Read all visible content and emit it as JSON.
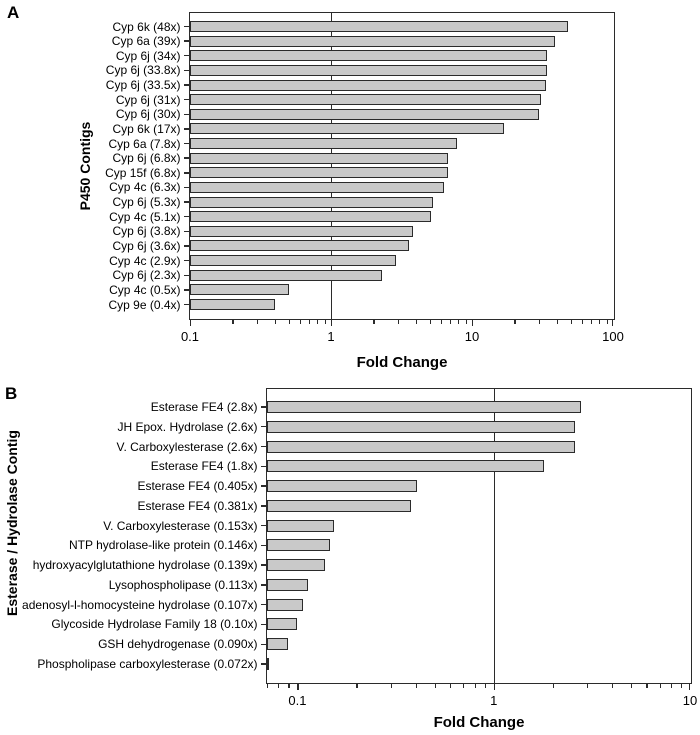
{
  "figure_note_colors": "colors below are the ones visible in the figure",
  "colors": {
    "background": "#ffffff",
    "bar_fill": "#c9c9c9",
    "bar_border": "#2b2b2b",
    "axis": "#2b2b2b",
    "text": "#000000"
  },
  "chart_data": [
    {
      "panel": "A",
      "type": "bar",
      "orientation": "horizontal",
      "xlabel": "Fold Change",
      "ylabel": "P450 Contigs",
      "x_scale": "log",
      "xlim": [
        0.1,
        100
      ],
      "x_tick_labels": [
        "0.1",
        "1",
        "10",
        "100"
      ],
      "reference_line_x": 1,
      "grid": false,
      "legend": false,
      "categories": [
        "Cyp 6k (48x)",
        "Cyp 6a (39x)",
        "Cyp 6j (34x)",
        "Cyp 6j (33.8x)",
        "Cyp 6j (33.5x)",
        "Cyp 6j (31x)",
        "Cyp 6j (30x)",
        "Cyp 6k (17x)",
        "Cyp 6a (7.8x)",
        "Cyp 6j (6.8x)",
        "Cyp 15f (6.8x)",
        "Cyp 4c (6.3x)",
        "Cyp 6j (5.3x)",
        "Cyp 4c (5.1x)",
        "Cyp 6j (3.8x)",
        "Cyp 6j (3.6x)",
        "Cyp 4c (2.9x)",
        "Cyp 6j (2.3x)",
        "Cyp 4c (0.5x)",
        "Cyp 9e (0.4x)"
      ],
      "values": [
        48,
        39,
        34,
        33.8,
        33.5,
        31,
        30,
        17,
        7.8,
        6.8,
        6.8,
        6.3,
        5.3,
        5.1,
        3.8,
        3.6,
        2.9,
        2.3,
        0.5,
        0.4
      ]
    },
    {
      "panel": "B",
      "type": "bar",
      "orientation": "horizontal",
      "xlabel": "Fold Change",
      "ylabel": "Esterase / Hydrolase Contig",
      "x_scale": "log",
      "xlim": [
        0.07,
        10
      ],
      "x_tick_labels": [
        "0.1",
        "1",
        "10"
      ],
      "reference_line_x": 1,
      "grid": false,
      "legend": false,
      "categories": [
        "Esterase FE4 (2.8x)",
        "JH Epox. Hydrolase (2.6x)",
        "V. Carboxylesterase (2.6x)",
        "Esterase FE4 (1.8x)",
        "Esterase FE4 (0.405x)",
        "Esterase FE4 (0.381x)",
        "V. Carboxylesterase (0.153x)",
        "NTP hydrolase-like protein (0.146x)",
        "hydroxyacylglutathione hydrolase (0.139x)",
        "Lysophospholipase (0.113x)",
        "adenosyl-l-homocysteine hydrolase (0.107x)",
        "Glycoside Hydrolase Family 18 (0.10x)",
        "GSH dehydrogenase (0.090x)",
        "Phospholipase carboxylesterase (0.072x)"
      ],
      "values": [
        2.8,
        2.6,
        2.6,
        1.8,
        0.405,
        0.381,
        0.153,
        0.146,
        0.139,
        0.113,
        0.107,
        0.1,
        0.09,
        0.072
      ]
    }
  ]
}
